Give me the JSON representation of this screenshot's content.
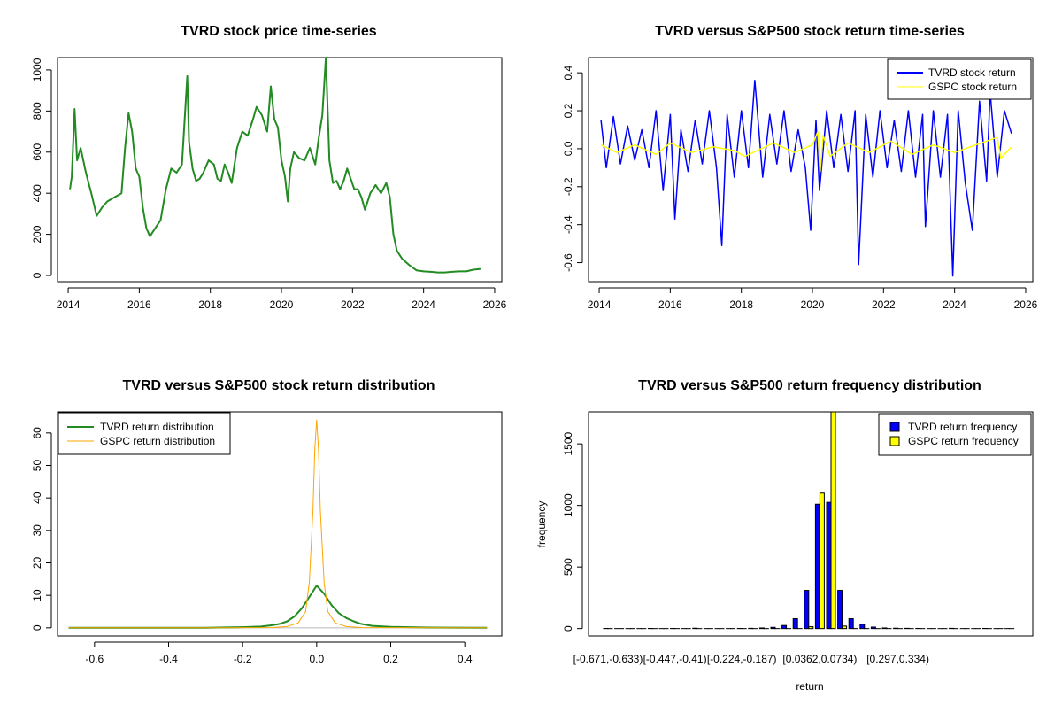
{
  "colors": {
    "price": "#228B22",
    "tvrd_return": "#0000FF",
    "gspc_return": "#FFFF00",
    "tvrd_density": "#228B22",
    "gspc_density": "#FFA500",
    "tvrd_freq": "#0000FF",
    "gspc_freq": "#FFFF00"
  },
  "chart_data": [
    {
      "type": "line",
      "title": "TVRD stock price time-series",
      "xlabel": "",
      "ylabel": "",
      "x_ticks": [
        "2014",
        "2016",
        "2018",
        "2020",
        "2022",
        "2024",
        "2026"
      ],
      "y_ticks": [
        "0",
        "200",
        "400",
        "600",
        "800",
        "1000"
      ],
      "xlim": [
        2013.7,
        2026.2
      ],
      "ylim": [
        -30,
        1060
      ],
      "series": [
        {
          "color_key": "price",
          "x": [
            2014.05,
            2014.1,
            2014.18,
            2014.25,
            2014.35,
            2014.5,
            2014.65,
            2014.8,
            2014.95,
            2015.1,
            2015.3,
            2015.5,
            2015.6,
            2015.7,
            2015.8,
            2015.9,
            2016.0,
            2016.1,
            2016.2,
            2016.3,
            2016.45,
            2016.6,
            2016.75,
            2016.9,
            2017.05,
            2017.2,
            2017.35,
            2017.4,
            2017.5,
            2017.6,
            2017.7,
            2017.8,
            2017.95,
            2018.1,
            2018.2,
            2018.3,
            2018.4,
            2018.5,
            2018.6,
            2018.75,
            2018.9,
            2019.05,
            2019.2,
            2019.3,
            2019.45,
            2019.6,
            2019.7,
            2019.8,
            2019.9,
            2020.0,
            2020.1,
            2020.18,
            2020.25,
            2020.35,
            2020.5,
            2020.65,
            2020.8,
            2020.95,
            2021.05,
            2021.15,
            2021.25,
            2021.35,
            2021.45,
            2021.55,
            2021.65,
            2021.75,
            2021.85,
            2021.95,
            2022.05,
            2022.15,
            2022.25,
            2022.35,
            2022.5,
            2022.65,
            2022.8,
            2022.95,
            2023.05,
            2023.15,
            2023.25,
            2023.4,
            2023.6,
            2023.8,
            2024.0,
            2024.2,
            2024.4,
            2024.6,
            2024.8,
            2025.0,
            2025.2,
            2025.4,
            2025.6
          ],
          "y": [
            420,
            480,
            810,
            560,
            620,
            500,
            400,
            290,
            330,
            360,
            380,
            400,
            620,
            790,
            700,
            520,
            480,
            330,
            230,
            190,
            230,
            270,
            420,
            520,
            500,
            540,
            970,
            650,
            520,
            460,
            470,
            500,
            560,
            540,
            470,
            460,
            540,
            500,
            450,
            620,
            700,
            680,
            760,
            820,
            780,
            700,
            920,
            760,
            720,
            560,
            480,
            360,
            520,
            600,
            570,
            560,
            620,
            540,
            670,
            780,
            1060,
            560,
            450,
            460,
            420,
            460,
            520,
            470,
            420,
            420,
            380,
            320,
            400,
            440,
            400,
            450,
            380,
            200,
            120,
            80,
            50,
            25,
            20,
            18,
            15,
            15,
            18,
            20,
            20,
            28,
            32
          ]
        }
      ]
    },
    {
      "type": "line",
      "title": "TVRD versus S&P500 stock return time-series",
      "xlabel": "",
      "ylabel": "",
      "x_ticks": [
        "2014",
        "2016",
        "2018",
        "2020",
        "2022",
        "2024",
        "2026"
      ],
      "y_ticks": [
        "-0.6",
        "-0.4",
        "-0.2",
        "0.0",
        "0.2",
        "0.4"
      ],
      "xlim": [
        2013.7,
        2026.2
      ],
      "ylim": [
        -0.7,
        0.48
      ],
      "legend": "top-right",
      "series": [
        {
          "name": "TVRD stock return",
          "color_key": "tvrd_return",
          "x": [
            2014.05,
            2014.2,
            2014.4,
            2014.6,
            2014.8,
            2015.0,
            2015.2,
            2015.4,
            2015.6,
            2015.8,
            2016.0,
            2016.13,
            2016.3,
            2016.5,
            2016.7,
            2016.9,
            2017.1,
            2017.3,
            2017.45,
            2017.6,
            2017.8,
            2018.0,
            2018.2,
            2018.38,
            2018.6,
            2018.8,
            2019.0,
            2019.2,
            2019.4,
            2019.6,
            2019.8,
            2019.95,
            2020.1,
            2020.2,
            2020.4,
            2020.6,
            2020.8,
            2021.0,
            2021.2,
            2021.3,
            2021.5,
            2021.7,
            2021.9,
            2022.1,
            2022.3,
            2022.5,
            2022.7,
            2022.9,
            2023.1,
            2023.18,
            2023.4,
            2023.6,
            2023.8,
            2023.95,
            2024.1,
            2024.3,
            2024.5,
            2024.7,
            2024.9,
            2025.0,
            2025.2,
            2025.4,
            2025.6
          ],
          "y": [
            0.15,
            -0.1,
            0.17,
            -0.08,
            0.12,
            -0.06,
            0.1,
            -0.1,
            0.2,
            -0.22,
            0.18,
            -0.37,
            0.1,
            -0.12,
            0.15,
            -0.08,
            0.2,
            -0.1,
            -0.51,
            0.18,
            -0.15,
            0.2,
            -0.1,
            0.36,
            -0.15,
            0.18,
            -0.08,
            0.2,
            -0.12,
            0.1,
            -0.1,
            -0.43,
            0.15,
            -0.22,
            0.2,
            -0.1,
            0.18,
            -0.12,
            0.2,
            -0.61,
            0.18,
            -0.15,
            0.2,
            -0.1,
            0.15,
            -0.12,
            0.2,
            -0.15,
            0.18,
            -0.41,
            0.2,
            -0.15,
            0.18,
            -0.67,
            0.2,
            -0.18,
            -0.43,
            0.25,
            -0.17,
            0.3,
            -0.15,
            0.2,
            0.08
          ]
        },
        {
          "name": "GSPC stock return",
          "color_key": "gspc_return",
          "x": [
            2014.05,
            2014.5,
            2015.0,
            2015.6,
            2016.0,
            2016.6,
            2017.2,
            2017.8,
            2018.1,
            2018.9,
            2019.5,
            2020.0,
            2020.15,
            2020.22,
            2020.3,
            2020.5,
            2021.0,
            2021.6,
            2022.2,
            2022.8,
            2023.4,
            2024.0,
            2024.6,
            2025.2,
            2025.3,
            2025.6
          ],
          "y": [
            0.02,
            -0.02,
            0.02,
            -0.03,
            0.03,
            -0.02,
            0.01,
            -0.01,
            -0.04,
            0.03,
            -0.02,
            0.02,
            0.09,
            -0.12,
            0.07,
            -0.04,
            0.03,
            -0.02,
            0.04,
            -0.03,
            0.02,
            -0.02,
            0.02,
            0.06,
            -0.05,
            0.01
          ]
        }
      ]
    },
    {
      "type": "line",
      "title": "TVRD versus S&P500 stock return distribution",
      "xlabel": "",
      "ylabel": "",
      "x_ticks": [
        "-0.6",
        "-0.4",
        "-0.2",
        "0.0",
        "0.2",
        "0.4"
      ],
      "y_ticks": [
        "0",
        "10",
        "20",
        "30",
        "40",
        "50",
        "60"
      ],
      "xlim": [
        -0.7,
        0.5
      ],
      "ylim": [
        -2.5,
        66.5
      ],
      "legend": "top-left",
      "series": [
        {
          "name": "TVRD return distribution",
          "color_key": "tvrd_density",
          "x": [
            -0.67,
            -0.5,
            -0.3,
            -0.2,
            -0.15,
            -0.12,
            -0.1,
            -0.08,
            -0.06,
            -0.04,
            -0.02,
            0.0,
            0.02,
            0.04,
            0.06,
            0.08,
            0.1,
            0.12,
            0.15,
            0.2,
            0.3,
            0.46
          ],
          "y": [
            0,
            0,
            0,
            0.2,
            0.4,
            0.8,
            1.2,
            2.0,
            3.5,
            6.0,
            9.5,
            13.0,
            10.5,
            7.0,
            4.5,
            3.0,
            2.0,
            1.2,
            0.6,
            0.3,
            0.1,
            0
          ]
        },
        {
          "name": "GSPC return distribution",
          "color_key": "gspc_density",
          "x": [
            -0.67,
            -0.3,
            -0.12,
            -0.08,
            -0.05,
            -0.03,
            -0.02,
            -0.01,
            -0.005,
            0.0,
            0.005,
            0.01,
            0.02,
            0.03,
            0.05,
            0.08,
            0.12,
            0.46
          ],
          "y": [
            0,
            0,
            0.1,
            0.4,
            1.5,
            5,
            14,
            36,
            55,
            64,
            55,
            36,
            14,
            5,
            1.5,
            0.4,
            0.1,
            0
          ]
        }
      ]
    },
    {
      "type": "bar",
      "title": "TVRD versus S&P500 return frequency distribution",
      "xlabel": "return",
      "ylabel": "frequency",
      "y_ticks": [
        "0",
        "500",
        "1000",
        "1500"
      ],
      "ylim": [
        -60,
        1760
      ],
      "legend": "top-right",
      "tick_labels": [
        "[-0.671,-0.633)",
        "[-0.447,-0.41)",
        "[-0.224,-0.187)",
        "[0.0362,0.0734)",
        "[0.297,0.334)"
      ],
      "tick_label_indices": [
        0,
        6,
        12,
        19,
        26
      ],
      "series": [
        {
          "name": "TVRD return frequency",
          "color_key": "tvrd_freq",
          "values": [
            1,
            0,
            0,
            0,
            1,
            0,
            1,
            0,
            3,
            0,
            0,
            0,
            1,
            2,
            5,
            10,
            25,
            80,
            310,
            1010,
            1025,
            310,
            80,
            35,
            12,
            5,
            3,
            2,
            1,
            0,
            0,
            2,
            0,
            0,
            1,
            0,
            0
          ]
        },
        {
          "name": "GSPC return frequency",
          "color_key": "gspc_freq",
          "values": [
            0,
            0,
            0,
            0,
            0,
            0,
            0,
            0,
            0,
            0,
            0,
            0,
            0,
            0,
            0,
            0,
            0,
            0,
            15,
            1100,
            1760,
            20,
            0,
            0,
            0,
            0,
            0,
            0,
            0,
            0,
            0,
            0,
            0,
            0,
            0,
            0,
            0
          ]
        }
      ]
    }
  ]
}
